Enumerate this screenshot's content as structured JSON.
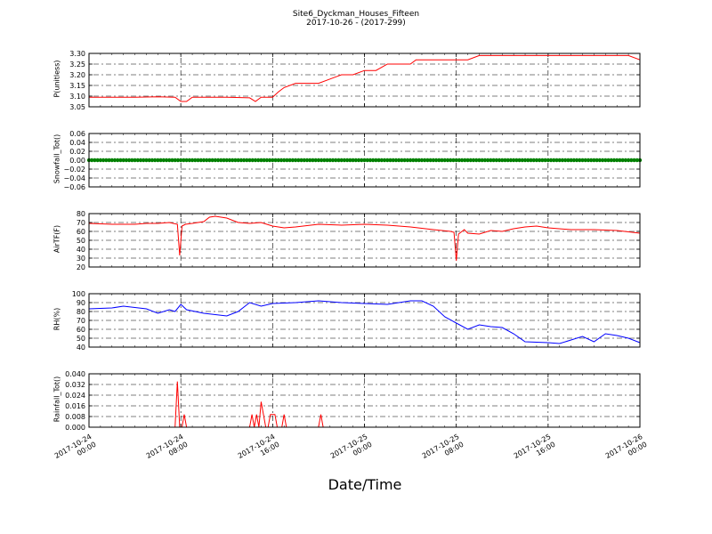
{
  "figure": {
    "title_line1": "Site6_Dyckman_Houses_Fifteen",
    "title_line2": "2017-10-26 - (2017-299)",
    "xlabel": "Date/Time",
    "x_ticks": [
      "2017-10-24\n00:00",
      "2017-10-24\n08:00",
      "2017-10-24\n16:00",
      "2017-10-25\n00:00",
      "2017-10-25\n08:00",
      "2017-10-25\n16:00",
      "2017-10-26\n00:00"
    ]
  },
  "chart_data": [
    {
      "type": "line",
      "ylabel": "P(unitless)",
      "color": "#ff0000",
      "ylim": [
        3.05,
        3.3
      ],
      "yticks": [
        "3.05",
        "3.10",
        "3.15",
        "3.20",
        "3.25",
        "3.30"
      ],
      "x_hours": [
        0,
        2,
        4,
        6,
        7.5,
        8,
        8.5,
        9,
        10,
        12,
        14,
        14.5,
        15,
        16,
        16.5,
        17,
        18,
        19,
        20,
        21,
        22,
        23,
        24,
        25,
        26,
        28,
        28.5,
        30,
        32,
        33,
        34,
        35,
        36,
        37,
        38,
        40,
        42,
        44,
        46,
        47,
        48
      ],
      "values": [
        3.095,
        3.095,
        3.095,
        3.097,
        3.095,
        3.075,
        3.075,
        3.095,
        3.095,
        3.095,
        3.092,
        3.075,
        3.095,
        3.095,
        3.12,
        3.14,
        3.16,
        3.16,
        3.16,
        3.18,
        3.2,
        3.2,
        3.22,
        3.22,
        3.25,
        3.25,
        3.27,
        3.27,
        3.27,
        3.27,
        3.29,
        3.29,
        3.29,
        3.29,
        3.29,
        3.29,
        3.29,
        3.29,
        3.29,
        3.29,
        3.27
      ],
      "grid": true
    },
    {
      "type": "scatter",
      "ylabel": "Snowfall_Tot()",
      "color": "#008000",
      "ylim": [
        -0.06,
        0.06
      ],
      "yticks": [
        "−0.06",
        "−0.04",
        "−0.02",
        "0.00",
        "0.02",
        "0.04",
        "0.06"
      ],
      "x_hours": [
        0,
        48
      ],
      "values": [
        0.0,
        0.0
      ],
      "grid": true
    },
    {
      "type": "line",
      "ylabel": "AirTF(F)",
      "color": "#ff0000",
      "ylim": [
        20,
        80
      ],
      "yticks": [
        "20",
        "30",
        "40",
        "50",
        "60",
        "70",
        "80"
      ],
      "x_hours": [
        0,
        2,
        4,
        5,
        6,
        7,
        7.7,
        7.9,
        8.1,
        8.4,
        9,
        10,
        10.5,
        11,
        11.5,
        12,
        13,
        14,
        15,
        16,
        17,
        18,
        20,
        22,
        24,
        26,
        28,
        30,
        31.5,
        31.8,
        32,
        32.2,
        32.7,
        33,
        34,
        35,
        36,
        37,
        38,
        39,
        40,
        42,
        44,
        46,
        48
      ],
      "values": [
        69,
        68,
        68,
        69,
        69,
        70,
        68,
        33,
        66,
        68,
        69,
        71,
        76,
        77,
        76,
        75,
        70,
        69,
        70,
        66,
        64,
        65,
        68,
        67,
        68,
        67,
        65,
        62,
        60,
        59,
        27,
        57,
        62,
        58,
        57,
        61,
        60,
        63,
        65,
        66,
        64,
        62,
        62,
        61,
        58
      ],
      "grid": true
    },
    {
      "type": "line",
      "ylabel": "RH(%)",
      "color": "#0000ff",
      "ylim": [
        40,
        100
      ],
      "yticks": [
        "40",
        "50",
        "60",
        "70",
        "80",
        "90",
        "100"
      ],
      "x_hours": [
        0,
        2,
        3,
        5,
        6,
        7,
        7.5,
        8,
        8.5,
        10,
        12,
        13,
        14,
        15,
        16,
        18,
        20,
        22,
        24,
        26,
        28,
        29,
        30,
        31,
        32,
        33,
        34,
        35,
        36,
        37,
        38,
        40,
        41,
        42,
        43,
        44,
        45,
        46,
        47,
        48
      ],
      "values": [
        83,
        84,
        86,
        83,
        78,
        82,
        80,
        88,
        82,
        78,
        75,
        80,
        90,
        86,
        89,
        90,
        92,
        90,
        89,
        88,
        92,
        92,
        86,
        74,
        67,
        60,
        65,
        63,
        62,
        55,
        46,
        45,
        44,
        48,
        52,
        46,
        55,
        53,
        50,
        45
      ],
      "grid": true
    },
    {
      "type": "line",
      "ylabel": "Rainfall_Tot()",
      "color": "#ff0000",
      "ylim": [
        0.0,
        0.042
      ],
      "yticks": [
        "0.000",
        "0.008",
        "0.016",
        "0.024",
        "0.032",
        "0.040"
      ],
      "x_hours": [
        0,
        7.5,
        7.7,
        7.9,
        8.1,
        8.3,
        8.5,
        8.7,
        14,
        14.2,
        14.4,
        14.6,
        14.8,
        15,
        15.2,
        15.4,
        15.6,
        15.8,
        16.2,
        16.4,
        16.8,
        17,
        17.2,
        17.4,
        20,
        20.2,
        20.4,
        48
      ],
      "values": [
        0,
        0,
        0.036,
        0,
        0,
        0.01,
        0,
        0,
        0,
        0.01,
        0,
        0.01,
        0,
        0.02,
        0.01,
        0,
        0,
        0.01,
        0.01,
        0,
        0,
        0.01,
        0,
        0,
        0,
        0.01,
        0,
        0
      ],
      "grid": true
    }
  ]
}
